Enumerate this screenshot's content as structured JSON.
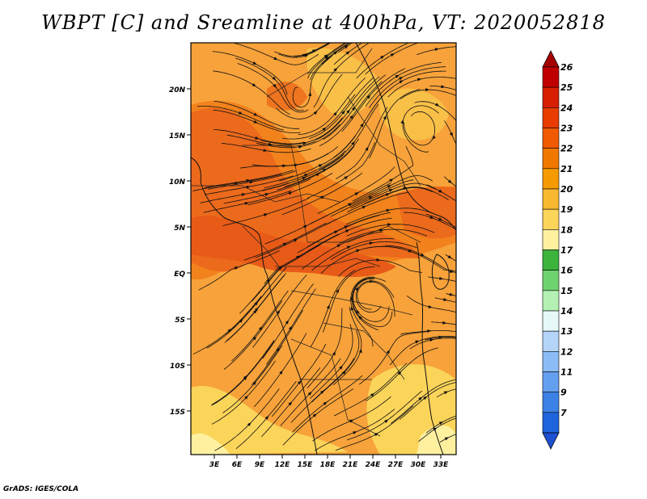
{
  "title": "WBPT [C] and Sreamline at 400hPa, VT: 2020052818",
  "footer": "GrADS: IGES/COLA",
  "map": {
    "y_ticks": [
      "20N",
      "15N",
      "10N",
      "5N",
      "EQ",
      "5S",
      "10S",
      "15S"
    ],
    "x_ticks": [
      "3E",
      "6E",
      "9E",
      "12E",
      "15E",
      "18E",
      "21E",
      "24E",
      "27E",
      "30E",
      "33E"
    ]
  },
  "colorbar": {
    "labels": [
      "26",
      "25",
      "24",
      "23",
      "22",
      "21",
      "20",
      "19",
      "18",
      "17",
      "16",
      "15",
      "14",
      "13",
      "12",
      "11",
      "9",
      "7"
    ],
    "colors": {
      "top_arrow": "#a50000",
      "bands": [
        "#c00000",
        "#d81e00",
        "#e83c00",
        "#f05a00",
        "#f07800",
        "#f59a00",
        "#f8b830",
        "#fbd45a",
        "#fff0a0",
        "#3cb43c",
        "#6ed26e",
        "#b4f0b4",
        "#e6f8f8",
        "#b4d4f8",
        "#8cbcf5",
        "#64a0f0",
        "#3c82e6",
        "#1e64dc"
      ],
      "bottom_arrow": "#1e50d2"
    }
  }
}
